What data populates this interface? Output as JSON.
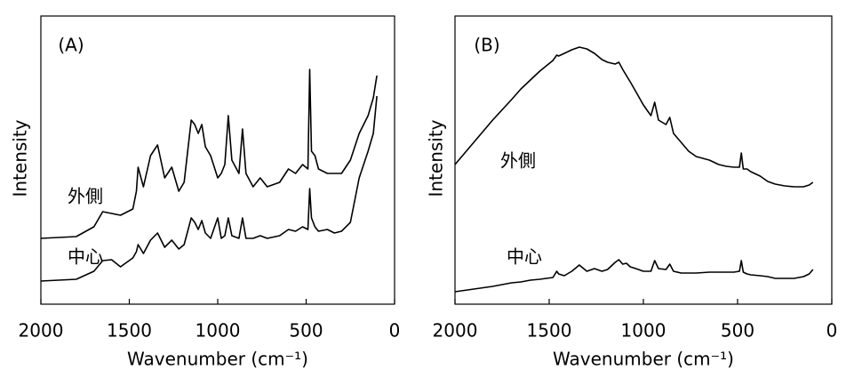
{
  "chart_data": [
    {
      "type": "line",
      "title": "(A)",
      "xlabel": "Wavenumber (cm⁻¹)",
      "ylabel": "Intensity",
      "xlim": [
        2000,
        0
      ],
      "xticks": [
        2000,
        1500,
        1000,
        500,
        0
      ],
      "ylim": [
        0,
        324
      ],
      "x": [
        2000,
        1800,
        1700,
        1650,
        1600,
        1550,
        1480,
        1460,
        1450,
        1420,
        1380,
        1340,
        1300,
        1260,
        1220,
        1190,
        1150,
        1130,
        1110,
        1090,
        1070,
        1040,
        1000,
        980,
        960,
        940,
        920,
        880,
        860,
        840,
        800,
        760,
        720,
        650,
        600,
        560,
        520,
        490,
        480,
        470,
        450,
        430,
        380,
        340,
        300,
        250,
        200,
        150,
        120,
        100
      ],
      "series": [
        {
          "name": "外側",
          "color": "#000000",
          "values": [
            74,
            76,
            87,
            104,
            102,
            100,
            107,
            127,
            154,
            132,
            167,
            179,
            142,
            154,
            127,
            137,
            207,
            202,
            192,
            202,
            177,
            167,
            142,
            147,
            157,
            212,
            162,
            147,
            197,
            147,
            132,
            142,
            132,
            137,
            152,
            147,
            157,
            152,
            264,
            172,
            167,
            152,
            147,
            147,
            147,
            162,
            192,
            212,
            232,
            257
          ]
        },
        {
          "name": "中心",
          "color": "#000000",
          "values": [
            26,
            28,
            37,
            49,
            50,
            42,
            52,
            59,
            67,
            57,
            72,
            80,
            64,
            72,
            62,
            67,
            97,
            92,
            84,
            94,
            80,
            74,
            97,
            74,
            77,
            97,
            77,
            74,
            97,
            74,
            74,
            77,
            74,
            77,
            84,
            82,
            87,
            84,
            130,
            97,
            87,
            82,
            84,
            80,
            82,
            92,
            142,
            172,
            192,
            234
          ]
        }
      ]
    },
    {
      "type": "line",
      "title": "(B)",
      "xlabel": "Wavenumber (cm⁻¹)",
      "ylabel": "Intensity",
      "xlim": [
        2000,
        0
      ],
      "xticks": [
        2000,
        1500,
        1000,
        500,
        0
      ],
      "ylim": [
        0,
        324
      ],
      "x": [
        2000,
        1800,
        1700,
        1650,
        1600,
        1550,
        1480,
        1460,
        1450,
        1420,
        1380,
        1340,
        1300,
        1260,
        1220,
        1190,
        1150,
        1130,
        1110,
        1090,
        1070,
        1040,
        1000,
        980,
        960,
        940,
        920,
        880,
        860,
        840,
        800,
        760,
        720,
        650,
        600,
        560,
        520,
        490,
        480,
        470,
        450,
        430,
        380,
        340,
        300,
        250,
        200,
        150,
        120,
        100
      ],
      "series": [
        {
          "name": "外側",
          "color": "#000000",
          "values": [
            157,
            207,
            230,
            242,
            252,
            262,
            274,
            280,
            279,
            282,
            286,
            289,
            287,
            282,
            275,
            272,
            270,
            272,
            264,
            257,
            250,
            239,
            224,
            218,
            212,
            227,
            207,
            202,
            210,
            192,
            182,
            172,
            166,
            162,
            157,
            155,
            154,
            154,
            170,
            152,
            152,
            149,
            144,
            138,
            135,
            133,
            132,
            132,
            134,
            137
          ]
        },
        {
          "name": "中心",
          "color": "#000000",
          "values": [
            14,
            20,
            24,
            25,
            27,
            28,
            30,
            37,
            34,
            32,
            37,
            44,
            37,
            40,
            37,
            39,
            47,
            50,
            45,
            46,
            42,
            40,
            37,
            37,
            37,
            49,
            40,
            39,
            45,
            37,
            35,
            35,
            35,
            36,
            36,
            36,
            36,
            37,
            49,
            36,
            34,
            33,
            32,
            31,
            29,
            29,
            29,
            31,
            34,
            39
          ]
        }
      ]
    }
  ]
}
